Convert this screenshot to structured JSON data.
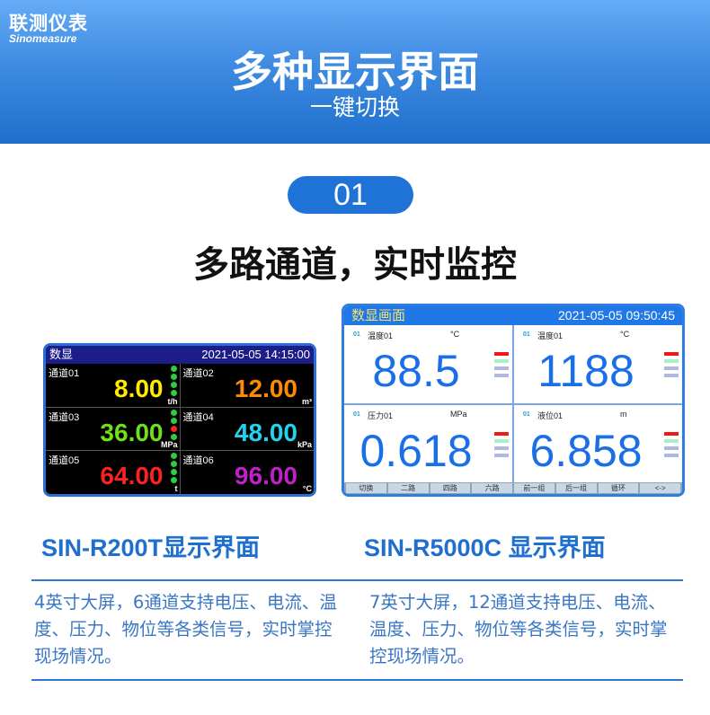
{
  "header": {
    "logo_cn": "联测仪表",
    "logo_en": "Sinomeasure",
    "title": "多种显示界面",
    "subtitle": "一键切换"
  },
  "badge": "01",
  "heading": "多路通道，实时监控",
  "screen_a": {
    "title": "数显",
    "datetime": "2021-05-05  14:15:00",
    "channels": [
      {
        "name": "通道01",
        "value": "8.00",
        "unit": "t/h",
        "color": "#ffea00"
      },
      {
        "name": "通道02",
        "value": "12.00",
        "unit": "m³",
        "color": "#ff8c00"
      },
      {
        "name": "通道03",
        "value": "36.00",
        "unit": "MPa",
        "color": "#6fe01a"
      },
      {
        "name": "通道04",
        "value": "48.00",
        "unit": "kPa",
        "color": "#22d3f0"
      },
      {
        "name": "通道05",
        "value": "64.00",
        "unit": "t",
        "color": "#ff2020"
      },
      {
        "name": "通道06",
        "value": "96.00",
        "unit": "°C",
        "color": "#c020c8"
      }
    ]
  },
  "screen_b": {
    "title": "数显画面",
    "datetime": "2021-05-05  09:50:45",
    "channels": [
      {
        "id": "01",
        "name": "温度01",
        "unit": "°C",
        "value": "88.5"
      },
      {
        "id": "01",
        "name": "温度01",
        "unit": "°C",
        "value": "1188"
      },
      {
        "id": "01",
        "name": "压力01",
        "unit": "MPa",
        "value": "0.618"
      },
      {
        "id": "01",
        "name": "液位01",
        "unit": "m",
        "value": "6.858"
      }
    ],
    "buttons": [
      "切换",
      "二路",
      "四路",
      "六路",
      "前一组",
      "后一组",
      "循环",
      "<->"
    ]
  },
  "models": [
    {
      "label": "SIN-R200T显示界面",
      "desc": "4英寸大屏，6通道支持电压、电流、温度、压力、物位等各类信号，实时掌控现场情况。"
    },
    {
      "label": "SIN-R5000C 显示界面",
      "desc": "7英寸大屏，12通道支持电压、电流、温度、压力、物位等各类信号，实时掌控现场情况。"
    }
  ]
}
